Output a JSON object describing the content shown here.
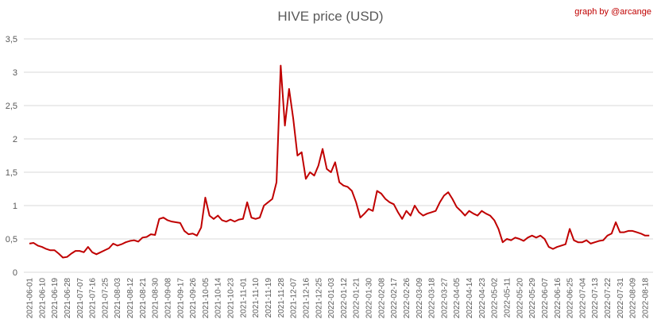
{
  "chart_data": {
    "type": "line",
    "title": "HIVE price (USD)",
    "annotation": "graph by @arcange",
    "color": "#c00000",
    "grid": true,
    "ylim": [
      0,
      3.5
    ],
    "yticks": [
      0,
      {
        "value": 0.5,
        "label": "0,5"
      },
      1,
      {
        "value": 1.5,
        "label": "1,5"
      },
      2,
      {
        "value": 2.5,
        "label": "2,5"
      },
      3,
      {
        "value": 3.5,
        "label": "3,5"
      }
    ],
    "categories": [
      "2021-06-01",
      null,
      null,
      "2021-06-10",
      null,
      null,
      "2021-06-19",
      null,
      null,
      "2021-06-28",
      null,
      null,
      "2021-07-07",
      null,
      null,
      "2021-07-16",
      null,
      null,
      "2021-07-25",
      null,
      null,
      "2021-08-03",
      null,
      null,
      "2021-08-12",
      null,
      null,
      "2021-08-21",
      null,
      null,
      "2021-08-30",
      null,
      null,
      "2021-09-08",
      null,
      null,
      "2021-09-17",
      null,
      null,
      "2021-09-26",
      null,
      null,
      "2021-10-05",
      null,
      null,
      "2021-10-14",
      null,
      null,
      "2021-10-23",
      null,
      null,
      "2021-11-01",
      null,
      null,
      "2021-11-10",
      null,
      null,
      "2021-11-19",
      null,
      null,
      "2021-11-28",
      null,
      null,
      "2021-12-07",
      null,
      null,
      "2021-12-16",
      null,
      null,
      "2021-12-25",
      null,
      null,
      "2022-01-03",
      null,
      null,
      "2022-01-12",
      null,
      null,
      "2022-01-21",
      null,
      null,
      "2022-01-30",
      null,
      null,
      "2022-02-08",
      null,
      null,
      "2022-02-17",
      null,
      null,
      "2022-02-26",
      null,
      null,
      "2022-03-09",
      null,
      null,
      "2022-03-18",
      null,
      null,
      "2022-03-27",
      null,
      null,
      "2022-04-05",
      null,
      null,
      "2022-04-14",
      null,
      null,
      "2022-04-23",
      null,
      null,
      "2022-05-02",
      null,
      null,
      "2022-05-11",
      null,
      null,
      "2022-05-20",
      null,
      null,
      "2022-05-29",
      null,
      null,
      "2022-06-07",
      null,
      null,
      "2022-06-16",
      null,
      null,
      "2022-06-25",
      null,
      null,
      "2022-07-04",
      null,
      null,
      "2022-07-13",
      null,
      null,
      "2022-07-22",
      null,
      null,
      "2022-07-31",
      null,
      null,
      "2022-08-09",
      null,
      null,
      "2022-08-18",
      null
    ],
    "values": [
      0.43,
      0.44,
      0.4,
      0.38,
      0.35,
      0.33,
      0.33,
      0.28,
      0.22,
      0.23,
      0.28,
      0.32,
      0.32,
      0.3,
      0.38,
      0.3,
      0.27,
      0.3,
      0.33,
      0.36,
      0.43,
      0.4,
      0.42,
      0.45,
      0.47,
      0.48,
      0.46,
      0.52,
      0.53,
      0.57,
      0.56,
      0.8,
      0.82,
      0.78,
      0.76,
      0.75,
      0.74,
      0.62,
      0.57,
      0.58,
      0.55,
      0.67,
      1.12,
      0.85,
      0.8,
      0.85,
      0.78,
      0.76,
      0.79,
      0.76,
      0.79,
      0.8,
      1.05,
      0.82,
      0.8,
      0.82,
      1.0,
      1.05,
      1.1,
      1.35,
      3.1,
      2.2,
      2.75,
      2.3,
      1.75,
      1.8,
      1.4,
      1.5,
      1.45,
      1.6,
      1.85,
      1.55,
      1.5,
      1.65,
      1.35,
      1.3,
      1.28,
      1.22,
      1.05,
      0.82,
      0.88,
      0.95,
      0.92,
      1.22,
      1.18,
      1.1,
      1.05,
      1.02,
      0.9,
      0.8,
      0.92,
      0.85,
      1.0,
      0.9,
      0.85,
      0.88,
      0.9,
      0.92,
      1.05,
      1.15,
      1.2,
      1.1,
      0.98,
      0.92,
      0.85,
      0.92,
      0.88,
      0.85,
      0.92,
      0.88,
      0.85,
      0.78,
      0.65,
      0.45,
      0.5,
      0.48,
      0.52,
      0.5,
      0.47,
      0.52,
      0.55,
      0.52,
      0.55,
      0.5,
      0.38,
      0.35,
      0.38,
      0.4,
      0.42,
      0.65,
      0.48,
      0.45,
      0.45,
      0.48,
      0.43,
      0.45,
      0.47,
      0.48,
      0.55,
      0.58,
      0.75,
      0.6,
      0.6,
      0.62,
      0.62,
      0.6,
      0.58,
      0.55,
      0.55
    ]
  }
}
